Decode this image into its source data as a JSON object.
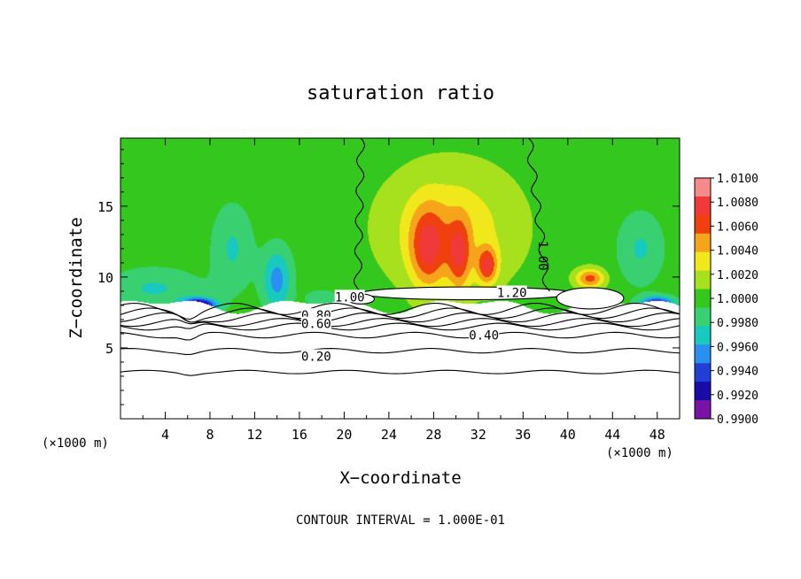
{
  "chart_data": {
    "type": "heatmap",
    "title": "saturation ratio",
    "xlabel": "X−coordinate",
    "ylabel": "Z−coordinate",
    "x_unit_left": "(×1000 m)",
    "x_unit_right": "(×1000 m)",
    "footer": "CONTOUR INTERVAL = 1.000E-01",
    "xlim": [
      0,
      50
    ],
    "ylim": [
      0,
      19.8
    ],
    "x_ticks": [
      4,
      8,
      12,
      16,
      20,
      24,
      28,
      32,
      36,
      40,
      44,
      48
    ],
    "y_ticks": [
      5,
      10,
      15
    ],
    "colorbar": {
      "labels": [
        "1.0100",
        "1.0080",
        "1.0060",
        "1.0040",
        "1.0020",
        "1.0000",
        "0.9980",
        "0.9960",
        "0.9940",
        "0.9920",
        "0.9900"
      ],
      "min": 0.99,
      "max": 1.01,
      "colors": [
        "#7a12a8",
        "#1a0aa6",
        "#1f3fd6",
        "#2a8ff0",
        "#18c9c0",
        "#38d070",
        "#34c81e",
        "#a7e01c",
        "#f0e81a",
        "#f6a51a",
        "#f0400e",
        "#f03a3a",
        "#f58a8a"
      ]
    },
    "background_value": 1.0,
    "features": [
      {
        "type": "blob",
        "x": 29.5,
        "z": 13.5,
        "sx": 6.0,
        "sz": 4.3,
        "amp": 0.0035
      },
      {
        "type": "blob",
        "x": 27.5,
        "z": 12.0,
        "sx": 1.6,
        "sz": 2.8,
        "amp": 0.0055
      },
      {
        "type": "blob",
        "x": 30.3,
        "z": 11.5,
        "sx": 1.0,
        "sz": 2.5,
        "amp": 0.005
      },
      {
        "type": "blob",
        "x": 32.8,
        "z": 10.8,
        "sx": 0.9,
        "sz": 1.3,
        "amp": 0.006
      },
      {
        "type": "blob",
        "x": 42.0,
        "z": 9.9,
        "sx": 1.3,
        "sz": 0.7,
        "amp": 0.006
      },
      {
        "type": "blob",
        "x": 14.0,
        "z": 9.8,
        "sx": 1.3,
        "sz": 2.2,
        "amp": -0.0045
      },
      {
        "type": "blob",
        "x": 3.0,
        "z": 9.2,
        "sx": 4.0,
        "sz": 1.4,
        "amp": -0.0025
      },
      {
        "type": "blob",
        "x": 7.0,
        "z": 8.0,
        "sx": 1.5,
        "sz": 0.5,
        "amp": -0.01
      },
      {
        "type": "blob",
        "x": 48.0,
        "z": 8.1,
        "sx": 1.5,
        "sz": 0.5,
        "amp": -0.008
      },
      {
        "type": "blob",
        "x": 10.0,
        "z": 12.0,
        "sx": 1.8,
        "sz": 3.0,
        "amp": -0.0025
      },
      {
        "type": "blob",
        "x": 46.5,
        "z": 12.0,
        "sx": 2.0,
        "sz": 2.5,
        "amp": -0.0025
      },
      {
        "type": "blob",
        "x": 18.0,
        "z": 8.5,
        "sx": 1.5,
        "sz": 0.6,
        "amp": -0.002
      }
    ],
    "contour_labels": [
      {
        "text": "1.00",
        "x": 20.5,
        "z": 8.6
      },
      {
        "text": "0.80",
        "x": 17.5,
        "z": 7.3
      },
      {
        "text": "0.60",
        "x": 17.5,
        "z": 6.7
      },
      {
        "text": "0.40",
        "x": 32.5,
        "z": 5.9
      },
      {
        "text": "0.20",
        "x": 17.5,
        "z": 4.4
      },
      {
        "text": "1.20",
        "x": 35.0,
        "z": 8.9
      },
      {
        "text": "1.00",
        "x": 37.8,
        "z": 11.5,
        "rotate": 90
      }
    ]
  }
}
